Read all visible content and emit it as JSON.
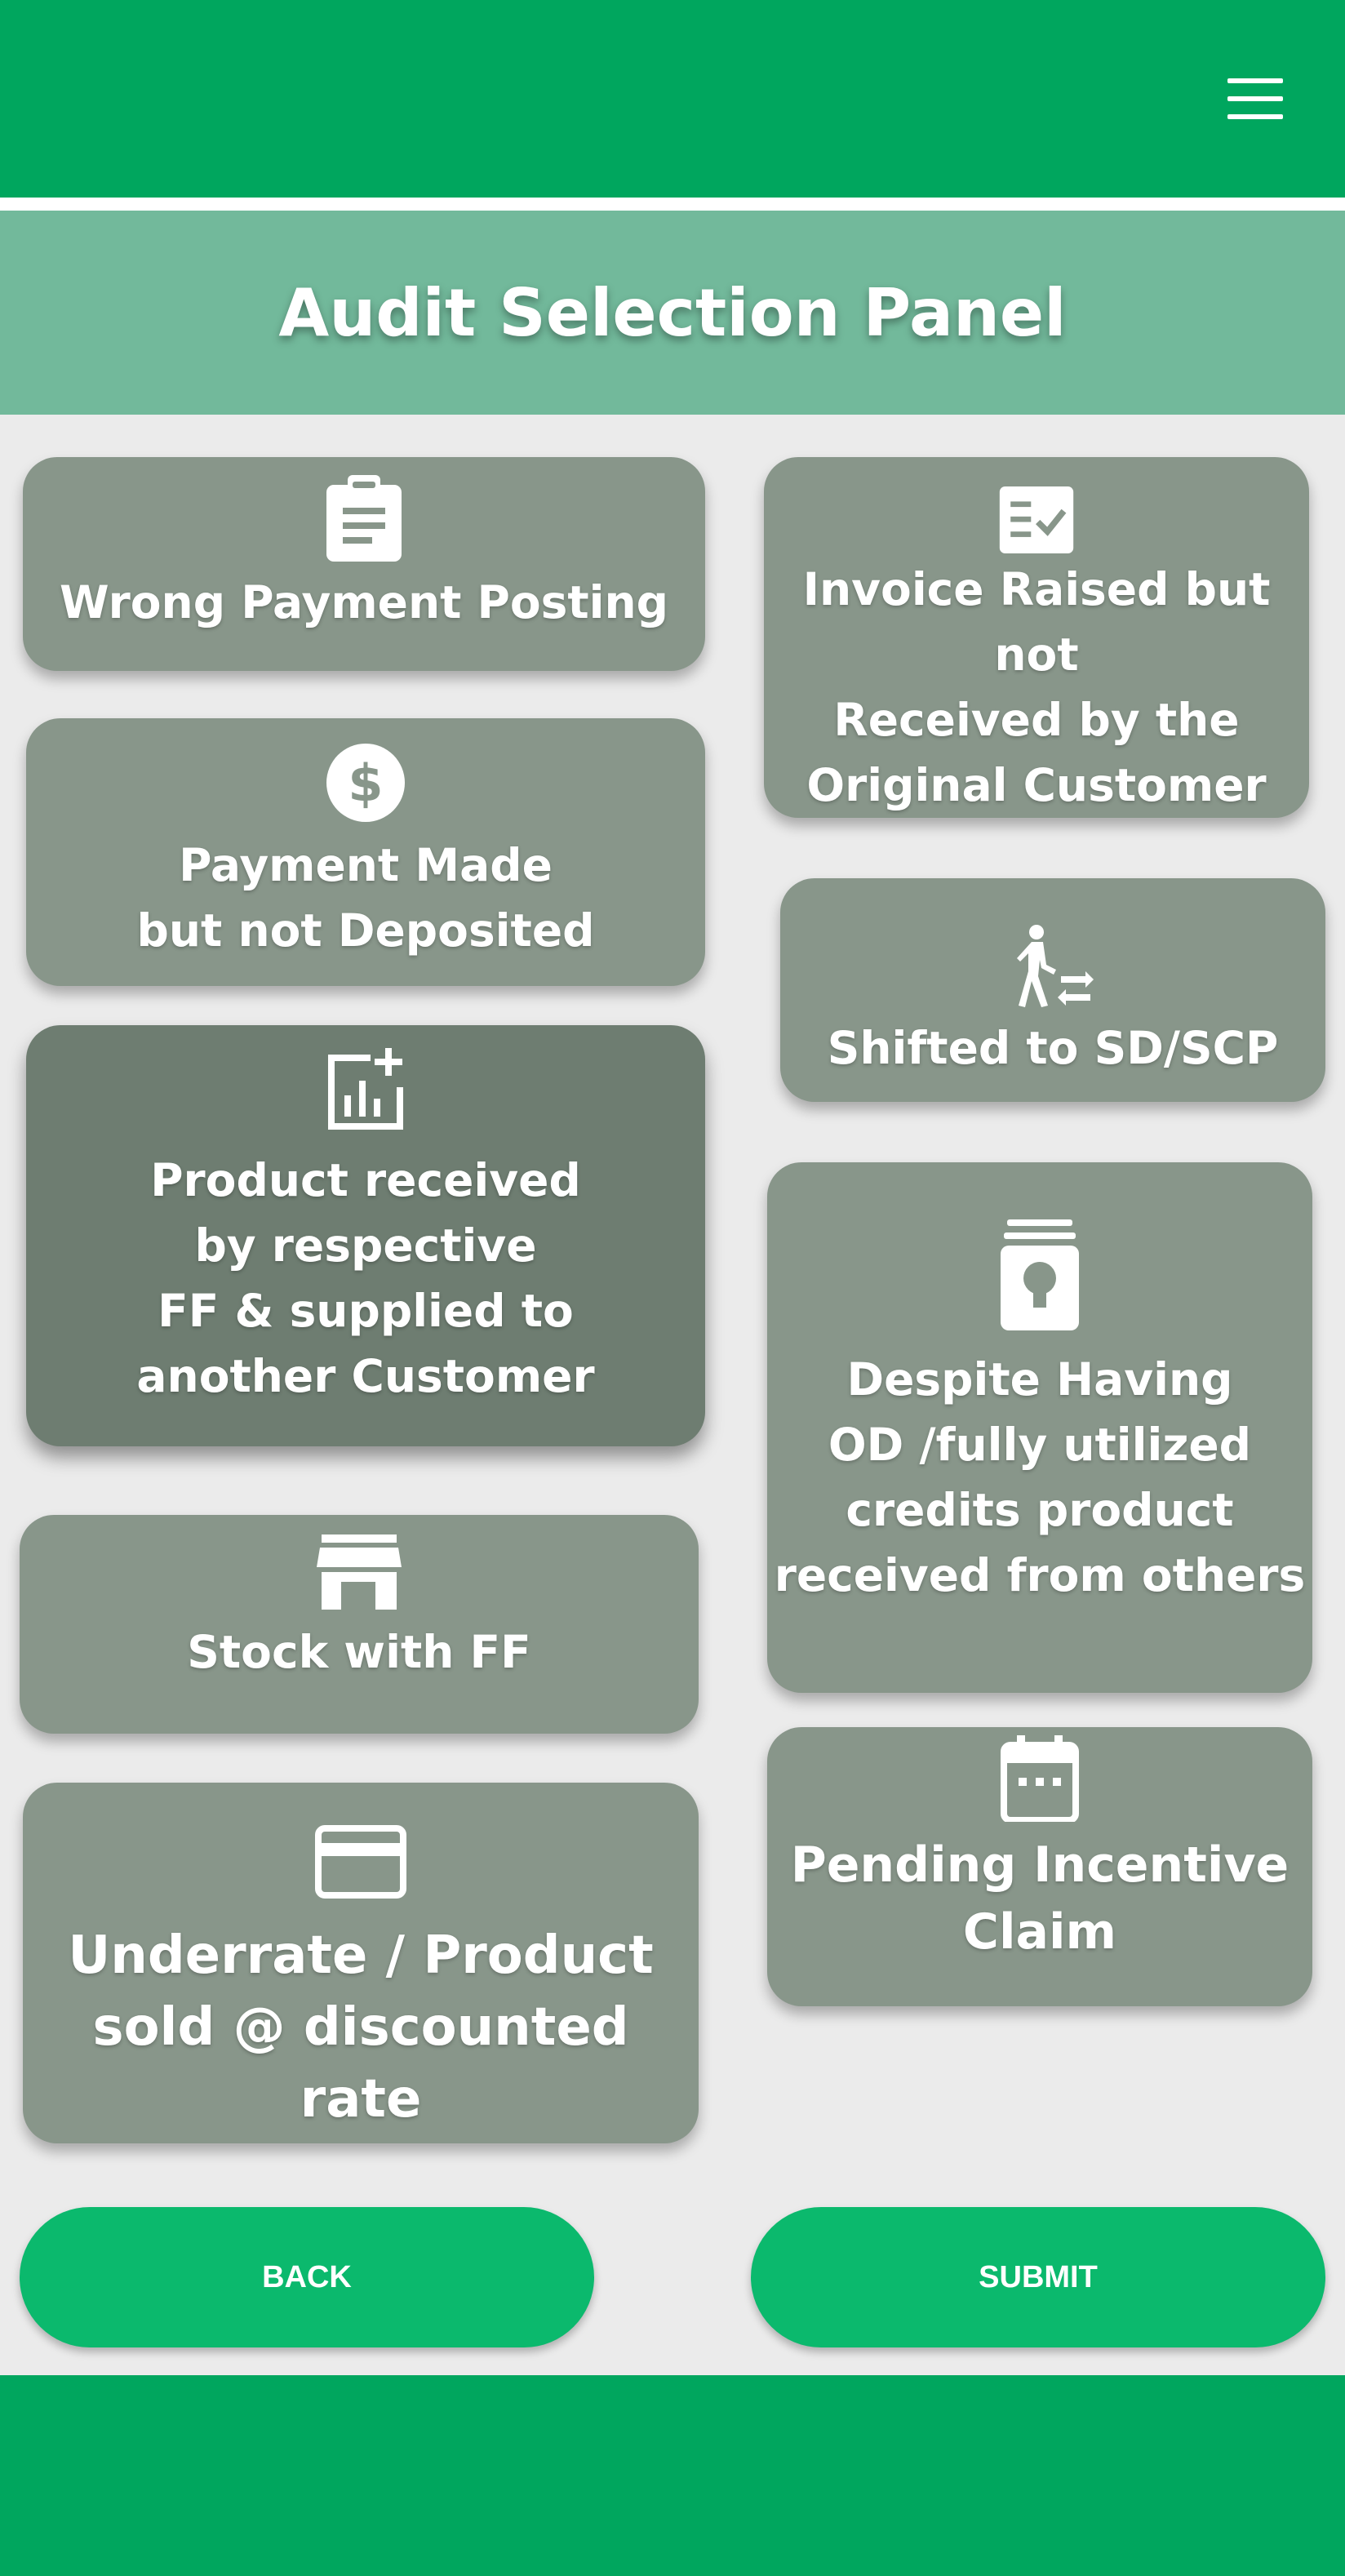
{
  "header": {
    "menu_icon": "hamburger-menu-icon"
  },
  "panel": {
    "title": "Audit Selection Panel"
  },
  "cards": {
    "wrong_payment": {
      "label": "Wrong Payment Posting",
      "icon": "clipboard-icon"
    },
    "invoice_raised": {
      "label": "Invoice Raised but not\nReceived by the\nOriginal Customer",
      "icon": "checklist-icon"
    },
    "payment_made": {
      "label": "Payment Made\nbut not Deposited",
      "icon": "dollar-icon"
    },
    "shifted": {
      "label": "Shifted to SD/SCP",
      "icon": "walk-transfer-icon"
    },
    "product_received": {
      "label": "Product received\nby respective\nFF & supplied to\nanother Customer",
      "icon": "chart-add-icon",
      "selected": true
    },
    "despite_having": {
      "label": "Despite Having\nOD /fully utilized\ncredits product\nreceived from others",
      "icon": "jar-bulb-icon"
    },
    "stock_ff": {
      "label": "Stock with FF",
      "icon": "store-icon"
    },
    "pending_incentive": {
      "label": "Pending Incentive\nClaim",
      "icon": "calendar-icon"
    },
    "underrate": {
      "label": "Underrate / Product\nsold @ discounted rate",
      "icon": "credit-card-icon"
    }
  },
  "actions": {
    "back": "BACK",
    "submit": "SUBMIT"
  },
  "colors": {
    "header_green": "#00a65e",
    "title_bar": "#72b99b",
    "card": "#88968a",
    "card_selected": "#6e7d71",
    "button": "#0bb96d",
    "background": "#ebebeb"
  }
}
